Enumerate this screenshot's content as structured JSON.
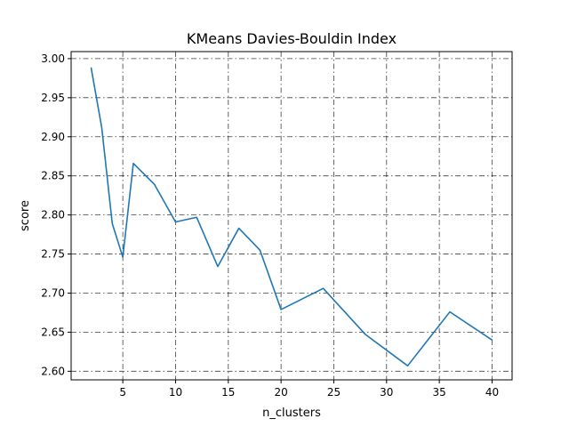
{
  "chart_data": {
    "type": "line",
    "title": "KMeans Davies-Bouldin Index",
    "xlabel": "n_clusters",
    "ylabel": "score",
    "xlim": [
      0.1,
      41.9
    ],
    "ylim": [
      2.589,
      3.009
    ],
    "xticks": [
      5,
      10,
      15,
      20,
      25,
      30,
      35,
      40
    ],
    "yticks": [
      2.6,
      2.65,
      2.7,
      2.75,
      2.8,
      2.85,
      2.9,
      2.95,
      3.0
    ],
    "grid": true,
    "series_color": "#1f77b4",
    "x": [
      2,
      3,
      4,
      5,
      6,
      8,
      10,
      12,
      14,
      16,
      18,
      20,
      24,
      28,
      32,
      36,
      40
    ],
    "values": [
      2.988,
      2.912,
      2.789,
      2.746,
      2.866,
      2.839,
      2.791,
      2.797,
      2.734,
      2.783,
      2.755,
      2.679,
      2.706,
      2.647,
      2.607,
      2.676,
      2.64
    ]
  }
}
